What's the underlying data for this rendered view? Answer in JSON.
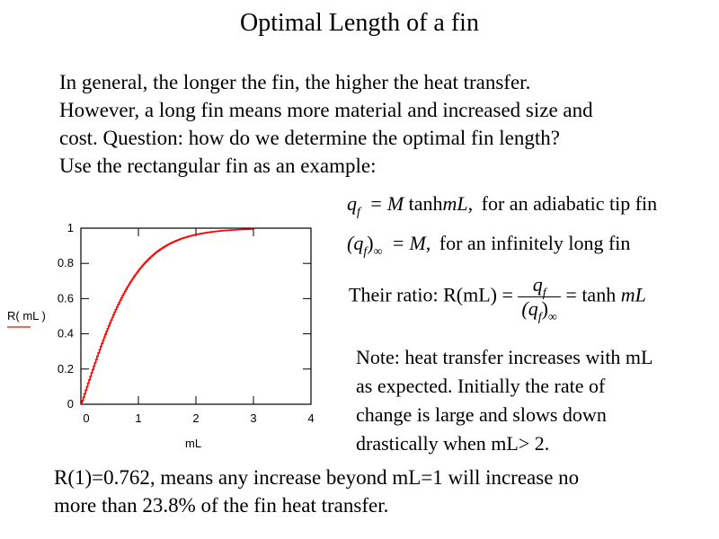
{
  "title": "Optimal Length of a fin",
  "intro": [
    "In general, the longer the fin, the higher the heat transfer.",
    "However, a long fin means more material and increased size and",
    "cost.  Question: how do we determine the optimal fin length?",
    "Use the rectangular fin as an example:"
  ],
  "equations": {
    "eq1": {
      "q": "q",
      "sub": "f",
      "rhs_M": "M",
      "tanh": "tanh",
      "arg": "mL,",
      "note": "for an adiabatic tip fin"
    },
    "eq2": {
      "open": "(q",
      "sub": "f",
      "close": ")",
      "inf": "∞",
      "rhs": "M,",
      "note": "for an infinitely long fin"
    },
    "eq3": {
      "label": "Their ratio:",
      "lhs": "R(mL) =",
      "num_q": "q",
      "num_sub": "f",
      "den_open": "(q",
      "den_sub": "f",
      "den_close": ")",
      "den_inf": "∞",
      "rhs_tanh": "= tanh",
      "rhs_arg": "mL"
    }
  },
  "note": [
    "Note: heat transfer increases with mL",
    "as expected.  Initially the rate of",
    "change is large and slows down",
    "drastically when mL> 2."
  ],
  "bottom": [
    "R(1)=0.762, means any increase beyond mL=1 will increase no",
    "more than 23.8% of the fin heat transfer."
  ],
  "chart_data": {
    "type": "line",
    "xlabel": "mL",
    "ylabel": "R( mL )",
    "xlim": [
      0,
      4
    ],
    "ylim": [
      0,
      1
    ],
    "xticks": [
      "0",
      "1",
      "2",
      "3",
      "4"
    ],
    "yticks": [
      "0",
      "0.2",
      "0.4",
      "0.6",
      "0.8",
      "1"
    ],
    "function": "tanh(mL)",
    "series": [
      {
        "name": "R( mL )",
        "color": "#ff0000",
        "x": [
          0,
          0.25,
          0.5,
          0.75,
          1.0,
          1.25,
          1.5,
          1.75,
          2.0,
          2.25,
          2.5,
          2.75,
          3.0
        ],
        "y": [
          0,
          0.245,
          0.462,
          0.635,
          0.762,
          0.848,
          0.905,
          0.941,
          0.964,
          0.978,
          0.987,
          0.992,
          0.995
        ]
      }
    ]
  }
}
